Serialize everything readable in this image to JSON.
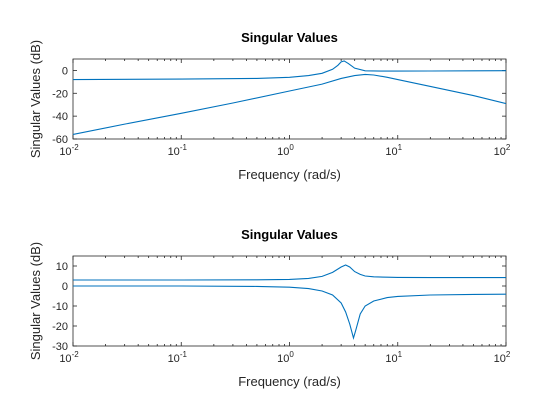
{
  "colors": {
    "series": "#0072bd",
    "axis": "#262626",
    "background": "#ffffff"
  },
  "chart_data": [
    {
      "type": "line",
      "title": "Singular Values",
      "xlabel": "Frequency (rad/s)",
      "ylabel": "Singular Values (dB)",
      "xscale": "log",
      "xlim": [
        0.01,
        100
      ],
      "ylim": [
        -60,
        10
      ],
      "xticks": [
        {
          "base": "10",
          "exp": "-2",
          "value": 0.01
        },
        {
          "base": "10",
          "exp": "-1",
          "value": 0.1
        },
        {
          "base": "10",
          "exp": "0",
          "value": 1
        },
        {
          "base": "10",
          "exp": "1",
          "value": 10
        },
        {
          "base": "10",
          "exp": "2",
          "value": 100
        }
      ],
      "yticks": [
        {
          "label": "0",
          "value": 0
        },
        {
          "label": "-20",
          "value": -20
        },
        {
          "label": "-40",
          "value": -40
        },
        {
          "label": "-60",
          "value": -60
        }
      ],
      "grid": false,
      "series": [
        {
          "x": [
            0.01,
            0.1,
            0.5,
            1,
            1.5,
            2,
            2.5,
            2.8,
            3,
            3.2,
            3.5,
            4,
            5,
            7,
            10,
            20,
            50,
            100
          ],
          "y": [
            -8,
            -7.6,
            -7,
            -6,
            -4.5,
            -2.5,
            1,
            4.5,
            7.5,
            8.3,
            6,
            2,
            -0.3,
            -0.6,
            -0.6,
            -0.5,
            -0.3,
            -0.2
          ]
        },
        {
          "x": [
            0.01,
            0.03,
            0.1,
            0.3,
            1,
            2,
            3,
            4,
            5,
            6,
            8,
            10,
            20,
            50,
            100
          ],
          "y": [
            -56,
            -47,
            -37.5,
            -28.5,
            -18,
            -12,
            -7,
            -4.5,
            -3.5,
            -4,
            -6,
            -8,
            -14,
            -22,
            -29
          ]
        }
      ]
    },
    {
      "type": "line",
      "title": "Singular Values",
      "xlabel": "Frequency (rad/s)",
      "ylabel": "Singular Values (dB)",
      "xscale": "log",
      "xlim": [
        0.01,
        100
      ],
      "ylim": [
        -30,
        15
      ],
      "xticks": [
        {
          "base": "10",
          "exp": "-2",
          "value": 0.01
        },
        {
          "base": "10",
          "exp": "-1",
          "value": 0.1
        },
        {
          "base": "10",
          "exp": "0",
          "value": 1
        },
        {
          "base": "10",
          "exp": "1",
          "value": 10
        },
        {
          "base": "10",
          "exp": "2",
          "value": 100
        }
      ],
      "yticks": [
        {
          "label": "10",
          "value": 10
        },
        {
          "label": "0",
          "value": 0
        },
        {
          "label": "-10",
          "value": -10
        },
        {
          "label": "-20",
          "value": -20
        },
        {
          "label": "-30",
          "value": -30
        }
      ],
      "grid": false,
      "series": [
        {
          "x": [
            0.01,
            0.1,
            0.5,
            1,
            1.5,
            2,
            2.5,
            3,
            3.3,
            3.6,
            4,
            4.5,
            5,
            6,
            8,
            10,
            20,
            50,
            100
          ],
          "y": [
            3,
            3,
            3.1,
            3.3,
            3.8,
            4.8,
            6.8,
            9.5,
            10.5,
            9.5,
            7.2,
            5.8,
            5,
            4.6,
            4.4,
            4.3,
            4.2,
            4.2,
            4.2
          ]
        },
        {
          "x": [
            0.01,
            0.1,
            0.5,
            1,
            1.5,
            2,
            2.5,
            3,
            3.3,
            3.6,
            3.9,
            4.1,
            4.5,
            5,
            6,
            8,
            10,
            20,
            50,
            100
          ],
          "y": [
            0,
            0,
            -0.2,
            -0.6,
            -1.3,
            -2.5,
            -4.5,
            -8.5,
            -13,
            -19,
            -26,
            -22,
            -14,
            -10,
            -7.5,
            -5.8,
            -5.2,
            -4.5,
            -4.2,
            -4.1
          ]
        }
      ]
    }
  ]
}
